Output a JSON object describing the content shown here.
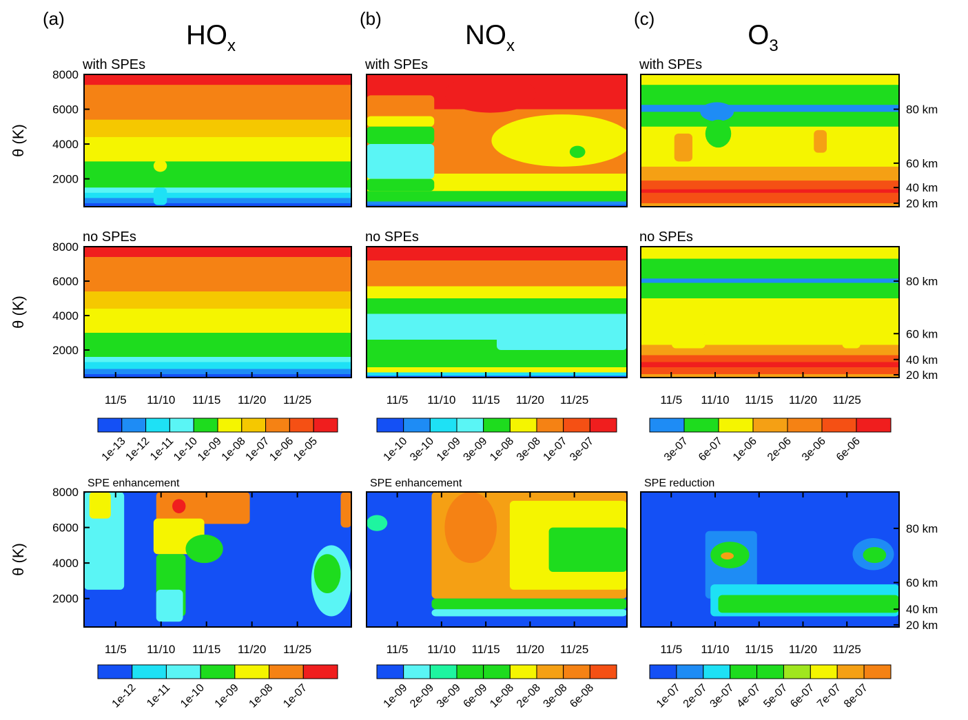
{
  "chart_data": [
    {
      "type": "contour",
      "panel_label": "(a)",
      "title": {
        "main": "HO",
        "sub": "x"
      },
      "subtitle": "with SPEs",
      "ylabel": "θ (K)",
      "ylim": [
        400,
        8000
      ],
      "yticks": [
        2000,
        4000,
        6000,
        8000
      ]
    },
    {
      "type": "contour",
      "panel_label": "(b)",
      "title": {
        "main": "NO",
        "sub": "x"
      },
      "subtitle": "with SPEs",
      "ylim": [
        400,
        8000
      ]
    },
    {
      "type": "contour",
      "panel_label": "(c)",
      "title": {
        "main": "O",
        "sub": "3"
      },
      "subtitle": "with SPEs",
      "ylim": [
        400,
        8000
      ],
      "y2ticks": [
        {
          "value": 6000,
          "label": "80 km"
        },
        {
          "value": 2900,
          "label": "60 km"
        },
        {
          "value": 1500,
          "label": "40 km"
        },
        {
          "value": 600,
          "label": "20 km"
        }
      ]
    },
    {
      "type": "contour",
      "subtitle": "no SPEs",
      "ylabel": "θ (K)",
      "ylim": [
        400,
        8000
      ],
      "yticks": [
        2000,
        4000,
        6000,
        8000
      ],
      "xticks": [
        "11/5",
        "11/10",
        "11/15",
        "11/20",
        "11/25"
      ],
      "colorbar": {
        "colors": [
          "#1450f5",
          "#1e8cf5",
          "#1ee1f5",
          "#5af5f5",
          "#1edc1e",
          "#f5f500",
          "#f5c800",
          "#f58214",
          "#f55014",
          "#f01e1e"
        ],
        "labels": [
          "1e-13",
          "1e-12",
          "1e-11",
          "1e-10",
          "1e-09",
          "1e-08",
          "1e-07",
          "1e-06",
          "1e-05"
        ]
      }
    },
    {
      "type": "contour",
      "subtitle": "no SPEs",
      "ylim": [
        400,
        8000
      ],
      "xticks": [
        "11/5",
        "11/10",
        "11/15",
        "11/20",
        "11/25"
      ],
      "colorbar": {
        "colors": [
          "#1450f5",
          "#1e8cf5",
          "#1ee1f5",
          "#5af5f5",
          "#1edc1e",
          "#f5f500",
          "#f58214",
          "#f55014",
          "#f01e1e"
        ],
        "labels": [
          "1e-10",
          "3e-10",
          "1e-09",
          "3e-09",
          "1e-08",
          "3e-08",
          "1e-07",
          "3e-07"
        ]
      }
    },
    {
      "type": "contour",
      "subtitle": "no SPEs",
      "ylim": [
        400,
        8000
      ],
      "y2ticks": [
        {
          "value": 6000,
          "label": "80 km"
        },
        {
          "value": 2950,
          "label": "60 km"
        },
        {
          "value": 1450,
          "label": "40 km"
        },
        {
          "value": 560,
          "label": "20 km"
        }
      ],
      "xticks": [
        "11/5",
        "11/10",
        "11/15",
        "11/20",
        "11/25"
      ],
      "colorbar": {
        "colors": [
          "#1e8cf5",
          "#1edc1e",
          "#f5f500",
          "#f5a014",
          "#f58214",
          "#f55014",
          "#f01e1e"
        ],
        "labels": [
          "3e-07",
          "6e-07",
          "1e-06",
          "2e-06",
          "3e-06",
          "6e-06"
        ]
      }
    },
    {
      "type": "contour",
      "subtitle": "SPE enhancement",
      "ylabel": "θ (K)",
      "ylim": [
        400,
        8000
      ],
      "yticks": [
        2000,
        4000,
        6000,
        8000
      ],
      "xticks": [
        "11/5",
        "11/10",
        "11/15",
        "11/20",
        "11/25"
      ],
      "colorbar": {
        "colors": [
          "#1450f5",
          "#1ee1f5",
          "#5af5f5",
          "#1edc1e",
          "#f5f500",
          "#f58214",
          "#f01e1e"
        ],
        "labels": [
          "1e-12",
          "1e-11",
          "1e-10",
          "1e-09",
          "1e-08",
          "1e-07"
        ]
      }
    },
    {
      "type": "contour",
      "subtitle": "SPE enhancement",
      "ylim": [
        400,
        8000
      ],
      "xticks": [
        "11/5",
        "11/10",
        "11/15",
        "11/20",
        "11/25"
      ],
      "colorbar": {
        "colors": [
          "#1450f5",
          "#5af5f5",
          "#1ef5a0",
          "#1edc1e",
          "#1edc1e",
          "#f5f500",
          "#f5a014",
          "#f58214",
          "#f55014"
        ],
        "labels": [
          "1e-09",
          "2e-09",
          "3e-09",
          "6e-09",
          "1e-08",
          "2e-08",
          "3e-08",
          "6e-08"
        ]
      }
    },
    {
      "type": "contour",
      "subtitle": "SPE reduction",
      "ylim": [
        400,
        8000
      ],
      "y2ticks": [
        {
          "value": 5950,
          "label": "80 km"
        },
        {
          "value": 2900,
          "label": "60 km"
        },
        {
          "value": 1400,
          "label": "40 km"
        },
        {
          "value": 520,
          "label": "20 km"
        }
      ],
      "xticks": [
        "11/5",
        "11/10",
        "11/15",
        "11/20",
        "11/25"
      ],
      "colorbar": {
        "colors": [
          "#1450f5",
          "#1e8cf5",
          "#1ee1f5",
          "#1edc1e",
          "#1edc1e",
          "#a0e61e",
          "#f5f500",
          "#f5a014",
          "#f58214"
        ],
        "labels": [
          "1e-07",
          "2e-07",
          "3e-07",
          "4e-07",
          "5e-07",
          "6e-07",
          "7e-07",
          "8e-07"
        ]
      }
    }
  ]
}
